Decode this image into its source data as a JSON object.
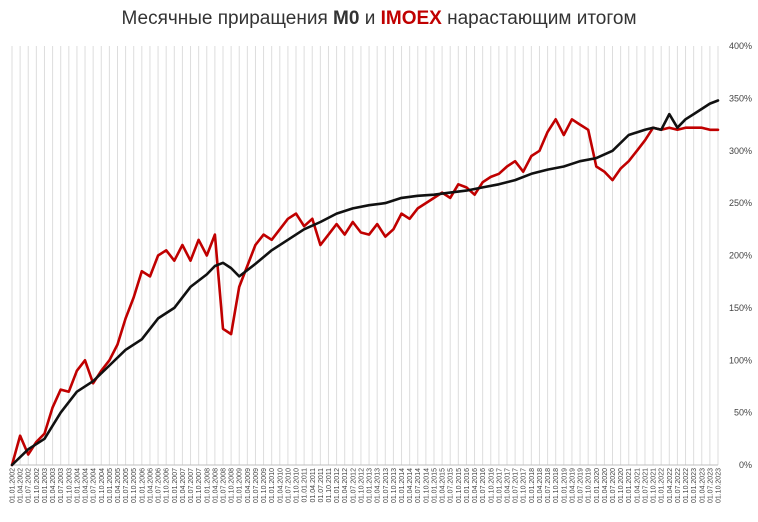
{
  "title": {
    "before": "Месячные приращения ",
    "m0": "M0",
    "middle": " и ",
    "imoex": "IMOEX",
    "after": " нарастающим итогом"
  },
  "colors": {
    "m0": "#111111",
    "imoex": "#c00000",
    "grid": "#dddddd",
    "axis": "#bfbfbf"
  },
  "chart_data": {
    "type": "line",
    "title": "Месячные приращения M0 и IMOEX нарастающим итогом",
    "xlabel": "",
    "ylabel": "",
    "ylim": [
      0,
      400
    ],
    "y_ticks": [
      0,
      50,
      100,
      150,
      200,
      250,
      300,
      350,
      400
    ],
    "y_tick_labels": [
      "0%",
      "50%",
      "100%",
      "150%",
      "200%",
      "250%",
      "300%",
      "350%",
      "400%"
    ],
    "grid": "vertical",
    "y_axis_position": "right",
    "x_tick_labels": [
      "01.01.2002",
      "01.04.2002",
      "01.07.2002",
      "01.10.2002",
      "01.01.2003",
      "01.04.2003",
      "01.07.2003",
      "01.10.2003",
      "01.01.2004",
      "01.04.2004",
      "01.07.2004",
      "01.10.2004",
      "01.01.2005",
      "01.04.2005",
      "01.07.2005",
      "01.10.2005",
      "01.01.2006",
      "01.04.2006",
      "01.07.2006",
      "01.10.2006",
      "01.01.2007",
      "01.04.2007",
      "01.07.2007",
      "01.10.2007",
      "01.01.2008",
      "01.04.2008",
      "01.07.2008",
      "01.10.2008",
      "01.01.2009",
      "01.04.2009",
      "01.07.2009",
      "01.10.2009",
      "01.01.2010",
      "01.04.2010",
      "01.07.2010",
      "01.10.2010",
      "01.01.2011",
      "01.04.2011",
      "01.07.2011",
      "01.10.2011",
      "01.01.2012",
      "01.04.2012",
      "01.07.2012",
      "01.10.2012",
      "01.01.2013",
      "01.04.2013",
      "01.07.2013",
      "01.10.2013",
      "01.01.2014",
      "01.04.2014",
      "01.07.2014",
      "01.10.2014",
      "01.01.2015",
      "01.04.2015",
      "01.07.2015",
      "01.10.2015",
      "01.01.2016",
      "01.04.2016",
      "01.07.2016",
      "01.10.2016",
      "01.01.2017",
      "01.04.2017",
      "01.07.2017",
      "01.10.2017",
      "01.01.2018",
      "01.04.2018",
      "01.07.2018",
      "01.10.2018",
      "01.01.2019",
      "01.04.2019",
      "01.07.2019",
      "01.10.2019",
      "01.01.2020",
      "01.04.2020",
      "01.07.2020",
      "01.10.2020",
      "01.01.2021",
      "01.04.2021",
      "01.07.2021",
      "01.10.2021",
      "01.01.2022",
      "01.04.2022",
      "01.07.2022",
      "01.10.2022",
      "01.01.2023",
      "01.04.2023",
      "01.07.2023",
      "01.10.2023"
    ],
    "series": [
      {
        "name": "M0",
        "x": [
          "01.01.2002",
          "01.07.2002",
          "01.01.2003",
          "01.07.2003",
          "01.01.2004",
          "01.07.2004",
          "01.01.2005",
          "01.07.2005",
          "01.01.2006",
          "01.07.2006",
          "01.01.2007",
          "01.07.2007",
          "01.01.2008",
          "01.04.2008",
          "01.07.2008",
          "01.10.2008",
          "01.01.2009",
          "01.07.2009",
          "01.01.2010",
          "01.07.2010",
          "01.01.2011",
          "01.07.2011",
          "01.01.2012",
          "01.07.2012",
          "01.01.2013",
          "01.07.2013",
          "01.01.2014",
          "01.07.2014",
          "01.01.2015",
          "01.07.2015",
          "01.01.2016",
          "01.07.2016",
          "01.01.2017",
          "01.07.2017",
          "01.01.2018",
          "01.07.2018",
          "01.01.2019",
          "01.07.2019",
          "01.01.2020",
          "01.07.2020",
          "01.01.2021",
          "01.07.2021",
          "01.10.2021",
          "01.01.2022",
          "01.04.2022",
          "01.07.2022",
          "01.10.2022",
          "01.01.2023",
          "01.04.2023",
          "01.07.2023",
          "01.10.2023"
        ],
        "values": [
          0,
          15,
          25,
          50,
          70,
          80,
          95,
          110,
          120,
          140,
          150,
          170,
          182,
          190,
          193,
          188,
          180,
          192,
          205,
          215,
          225,
          232,
          240,
          245,
          248,
          250,
          255,
          257,
          258,
          260,
          262,
          265,
          268,
          272,
          278,
          282,
          285,
          290,
          293,
          300,
          315,
          320,
          322,
          320,
          335,
          322,
          330,
          335,
          340,
          345,
          348
        ]
      },
      {
        "name": "IMOEX",
        "x": [
          "01.01.2002",
          "01.04.2002",
          "01.07.2002",
          "01.10.2002",
          "01.01.2003",
          "01.04.2003",
          "01.07.2003",
          "01.10.2003",
          "01.01.2004",
          "01.04.2004",
          "01.07.2004",
          "01.10.2004",
          "01.01.2005",
          "01.04.2005",
          "01.07.2005",
          "01.10.2005",
          "01.01.2006",
          "01.04.2006",
          "01.07.2006",
          "01.10.2006",
          "01.01.2007",
          "01.04.2007",
          "01.07.2007",
          "01.10.2007",
          "01.01.2008",
          "01.04.2008",
          "01.07.2008",
          "01.10.2008",
          "01.01.2009",
          "01.04.2009",
          "01.07.2009",
          "01.10.2009",
          "01.01.2010",
          "01.04.2010",
          "01.07.2010",
          "01.10.2010",
          "01.01.2011",
          "01.04.2011",
          "01.07.2011",
          "01.10.2011",
          "01.01.2012",
          "01.04.2012",
          "01.07.2012",
          "01.10.2012",
          "01.01.2013",
          "01.04.2013",
          "01.07.2013",
          "01.10.2013",
          "01.01.2014",
          "01.04.2014",
          "01.07.2014",
          "01.10.2014",
          "01.01.2015",
          "01.04.2015",
          "01.07.2015",
          "01.10.2015",
          "01.01.2016",
          "01.04.2016",
          "01.07.2016",
          "01.10.2016",
          "01.01.2017",
          "01.04.2017",
          "01.07.2017",
          "01.10.2017",
          "01.01.2018",
          "01.04.2018",
          "01.07.2018",
          "01.10.2018",
          "01.01.2019",
          "01.04.2019",
          "01.07.2019",
          "01.10.2019",
          "01.01.2020",
          "01.04.2020",
          "01.07.2020",
          "01.10.2020",
          "01.01.2021",
          "01.04.2021",
          "01.07.2021",
          "01.10.2021",
          "01.01.2022",
          "01.04.2022",
          "01.07.2022",
          "01.10.2022",
          "01.01.2023",
          "01.04.2023",
          "01.07.2023",
          "01.10.2023"
        ],
        "values": [
          0,
          28,
          10,
          22,
          30,
          55,
          72,
          70,
          90,
          100,
          78,
          90,
          100,
          115,
          140,
          160,
          185,
          180,
          200,
          205,
          195,
          210,
          195,
          215,
          200,
          220,
          130,
          125,
          170,
          190,
          210,
          220,
          215,
          225,
          235,
          240,
          228,
          235,
          210,
          220,
          230,
          220,
          232,
          222,
          220,
          230,
          218,
          225,
          240,
          235,
          245,
          250,
          255,
          260,
          255,
          268,
          265,
          258,
          270,
          275,
          278,
          285,
          290,
          280,
          295,
          300,
          318,
          330,
          315,
          330,
          325,
          320,
          285,
          280,
          272,
          283,
          290,
          300,
          310,
          322,
          320,
          322,
          320,
          322,
          322,
          322,
          320,
          320
        ]
      }
    ]
  }
}
